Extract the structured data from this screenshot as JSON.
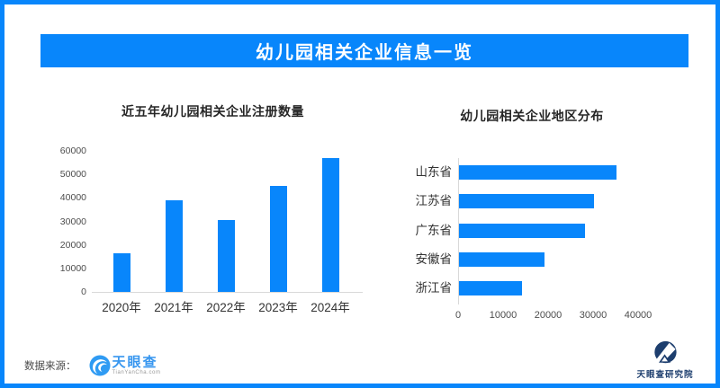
{
  "page": {
    "title": "幼儿园相关企业信息一览",
    "accent_color": "#0886fb"
  },
  "chart_data": [
    {
      "type": "bar",
      "orientation": "vertical",
      "title": "近五年幼儿园相关企业注册数量",
      "categories": [
        "2020年",
        "2021年",
        "2022年",
        "2023年",
        "2024年"
      ],
      "values": [
        16500,
        39000,
        30500,
        45000,
        57000
      ],
      "ylim": [
        0,
        60000
      ],
      "yticks": [
        0,
        10000,
        20000,
        30000,
        40000,
        50000,
        60000
      ],
      "grid": false,
      "legend": false,
      "bar_color": "#0886fb"
    },
    {
      "type": "bar",
      "orientation": "horizontal",
      "title": "幼儿园相关企业地区分布",
      "categories": [
        "山东省",
        "江苏省",
        "广东省",
        "安徽省",
        "浙江省"
      ],
      "values": [
        35000,
        30000,
        28000,
        19000,
        14000
      ],
      "xlim": [
        0,
        40000
      ],
      "xticks": [
        0,
        10000,
        20000,
        30000,
        40000
      ],
      "grid": false,
      "legend": false,
      "bar_color": "#0886fb"
    }
  ],
  "footer": {
    "source_label": "数据来源：",
    "tianyancha_wordmark": "天眼查",
    "tianyancha_domain": "TianYanCha.com",
    "institute_label": "天眼查研究院"
  }
}
